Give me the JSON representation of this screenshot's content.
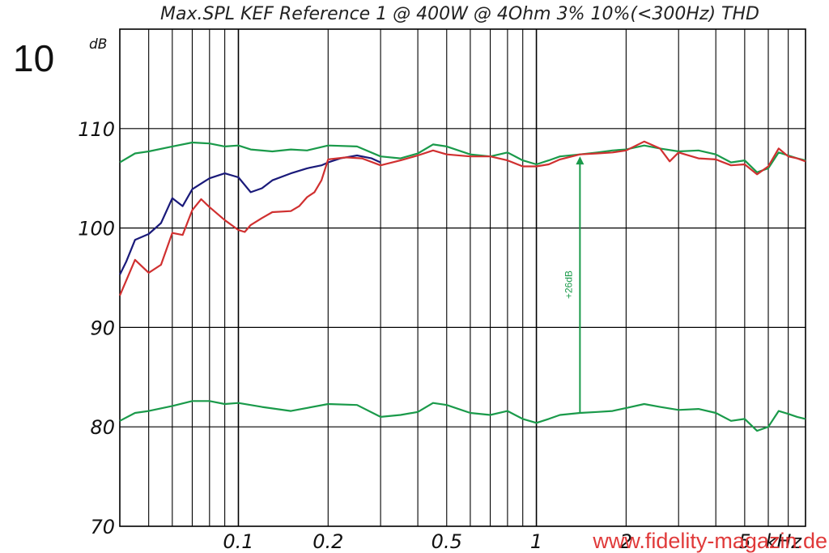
{
  "header": {
    "title": "Max.SPL KEF Reference 1 @ 400W @ 4Ohm 3% 10%(<300Hz) THD",
    "scale_value": "10",
    "scale_unit": "dB"
  },
  "watermark": "www.fidelity-magazin.de",
  "chart_data": {
    "type": "line",
    "title": "Max.SPL KEF Reference 1 @ 400W @ 4Ohm 3% 10%(<300Hz) THD",
    "xlabel": "kHz",
    "ylabel": "dB",
    "xscale": "log",
    "xlim": [
      0.04,
      8
    ],
    "ylim": [
      70,
      120
    ],
    "grid": true,
    "y_ticks": [
      "70",
      "80",
      "90",
      "100",
      "110"
    ],
    "x_ticks": [
      {
        "value": 0.1,
        "label": "0.1"
      },
      {
        "value": 0.2,
        "label": "0.2"
      },
      {
        "value": 0.5,
        "label": "0.5"
      },
      {
        "value": 1,
        "label": "1"
      },
      {
        "value": 2,
        "label": "2"
      },
      {
        "value": 5,
        "label": "5"
      }
    ],
    "x_unit_label": "kHz",
    "colors": {
      "green": "#1a9a4a",
      "blue": "#1a1a7a",
      "red": "#d03030"
    },
    "series": [
      {
        "color": "#1a9a4a",
        "points": [
          [
            0.04,
            106.6
          ],
          [
            0.045,
            107.5
          ],
          [
            0.05,
            107.7
          ],
          [
            0.06,
            108.2
          ],
          [
            0.07,
            108.6
          ],
          [
            0.08,
            108.5
          ],
          [
            0.09,
            108.2
          ],
          [
            0.1,
            108.3
          ],
          [
            0.11,
            107.9
          ],
          [
            0.13,
            107.7
          ],
          [
            0.15,
            107.9
          ],
          [
            0.17,
            107.8
          ],
          [
            0.2,
            108.3
          ],
          [
            0.25,
            108.2
          ],
          [
            0.3,
            107.2
          ],
          [
            0.35,
            107.0
          ],
          [
            0.4,
            107.5
          ],
          [
            0.45,
            108.4
          ],
          [
            0.5,
            108.2
          ],
          [
            0.6,
            107.4
          ],
          [
            0.7,
            107.2
          ],
          [
            0.8,
            107.6
          ],
          [
            0.9,
            106.8
          ],
          [
            1.0,
            106.4
          ],
          [
            1.1,
            106.8
          ],
          [
            1.2,
            107.2
          ],
          [
            1.4,
            107.4
          ],
          [
            1.6,
            107.6
          ],
          [
            1.8,
            107.8
          ],
          [
            2.0,
            107.9
          ],
          [
            2.3,
            108.3
          ],
          [
            2.6,
            108.0
          ],
          [
            3.0,
            107.7
          ],
          [
            3.5,
            107.8
          ],
          [
            4.0,
            107.4
          ],
          [
            4.5,
            106.6
          ],
          [
            5.0,
            106.8
          ],
          [
            5.5,
            105.6
          ],
          [
            6.0,
            106.0
          ],
          [
            6.5,
            107.6
          ],
          [
            7.0,
            107.3
          ],
          [
            7.5,
            107.0
          ],
          [
            8.0,
            106.8
          ]
        ]
      },
      {
        "color": "#1a1a7a",
        "points": [
          [
            0.04,
            95.3
          ],
          [
            0.042,
            96.6
          ],
          [
            0.045,
            98.8
          ],
          [
            0.05,
            99.4
          ],
          [
            0.055,
            100.5
          ],
          [
            0.06,
            103.0
          ],
          [
            0.065,
            102.2
          ],
          [
            0.07,
            103.9
          ],
          [
            0.08,
            105.0
          ],
          [
            0.09,
            105.5
          ],
          [
            0.1,
            105.1
          ],
          [
            0.11,
            103.6
          ],
          [
            0.12,
            104.0
          ],
          [
            0.13,
            104.8
          ],
          [
            0.15,
            105.5
          ],
          [
            0.17,
            106.0
          ],
          [
            0.19,
            106.3
          ],
          [
            0.2,
            106.6
          ],
          [
            0.22,
            107.0
          ],
          [
            0.25,
            107.3
          ],
          [
            0.28,
            107.0
          ],
          [
            0.3,
            106.6
          ]
        ]
      },
      {
        "color": "#d03030",
        "points": [
          [
            0.04,
            93.2
          ],
          [
            0.045,
            96.8
          ],
          [
            0.05,
            95.5
          ],
          [
            0.055,
            96.3
          ],
          [
            0.06,
            99.5
          ],
          [
            0.065,
            99.3
          ],
          [
            0.07,
            101.8
          ],
          [
            0.075,
            102.9
          ],
          [
            0.08,
            102.1
          ],
          [
            0.09,
            100.8
          ],
          [
            0.1,
            99.8
          ],
          [
            0.105,
            99.6
          ],
          [
            0.11,
            100.3
          ],
          [
            0.12,
            101.0
          ],
          [
            0.13,
            101.6
          ],
          [
            0.15,
            101.7
          ],
          [
            0.16,
            102.2
          ],
          [
            0.17,
            103.1
          ],
          [
            0.18,
            103.6
          ],
          [
            0.19,
            104.8
          ],
          [
            0.2,
            106.9
          ],
          [
            0.23,
            107.1
          ],
          [
            0.26,
            107.0
          ],
          [
            0.3,
            106.3
          ],
          [
            0.35,
            106.8
          ],
          [
            0.4,
            107.3
          ],
          [
            0.45,
            107.8
          ],
          [
            0.5,
            107.4
          ],
          [
            0.6,
            107.2
          ],
          [
            0.7,
            107.2
          ],
          [
            0.8,
            106.8
          ],
          [
            0.9,
            106.2
          ],
          [
            1.0,
            106.2
          ],
          [
            1.1,
            106.4
          ],
          [
            1.2,
            106.9
          ],
          [
            1.4,
            107.4
          ],
          [
            1.6,
            107.5
          ],
          [
            1.8,
            107.6
          ],
          [
            2.0,
            107.8
          ],
          [
            2.3,
            108.7
          ],
          [
            2.6,
            108.0
          ],
          [
            2.8,
            106.7
          ],
          [
            3.0,
            107.6
          ],
          [
            3.5,
            107.0
          ],
          [
            4.0,
            106.9
          ],
          [
            4.5,
            106.3
          ],
          [
            5.0,
            106.4
          ],
          [
            5.5,
            105.4
          ],
          [
            6.0,
            106.2
          ],
          [
            6.5,
            108.0
          ],
          [
            7.0,
            107.2
          ],
          [
            7.5,
            107.0
          ],
          [
            8.0,
            106.7
          ]
        ]
      },
      {
        "color": "#1a9a4a",
        "points": [
          [
            0.04,
            80.6
          ],
          [
            0.045,
            81.4
          ],
          [
            0.05,
            81.6
          ],
          [
            0.06,
            82.1
          ],
          [
            0.07,
            82.6
          ],
          [
            0.08,
            82.6
          ],
          [
            0.09,
            82.3
          ],
          [
            0.1,
            82.4
          ],
          [
            0.12,
            82.0
          ],
          [
            0.15,
            81.6
          ],
          [
            0.2,
            82.3
          ],
          [
            0.25,
            82.2
          ],
          [
            0.3,
            81.0
          ],
          [
            0.35,
            81.2
          ],
          [
            0.4,
            81.5
          ],
          [
            0.45,
            82.4
          ],
          [
            0.5,
            82.2
          ],
          [
            0.6,
            81.4
          ],
          [
            0.7,
            81.2
          ],
          [
            0.8,
            81.6
          ],
          [
            0.9,
            80.8
          ],
          [
            1.0,
            80.4
          ],
          [
            1.1,
            80.8
          ],
          [
            1.2,
            81.2
          ],
          [
            1.4,
            81.4
          ],
          [
            1.6,
            81.5
          ],
          [
            1.8,
            81.6
          ],
          [
            2.0,
            81.9
          ],
          [
            2.3,
            82.3
          ],
          [
            2.6,
            82.0
          ],
          [
            3.0,
            81.7
          ],
          [
            3.5,
            81.8
          ],
          [
            4.0,
            81.4
          ],
          [
            4.5,
            80.6
          ],
          [
            5.0,
            80.8
          ],
          [
            5.5,
            79.6
          ],
          [
            6.0,
            80.0
          ],
          [
            6.5,
            81.6
          ],
          [
            7.0,
            81.3
          ],
          [
            7.5,
            81.0
          ],
          [
            8.0,
            80.8
          ]
        ]
      }
    ],
    "annotations": [
      {
        "text": "+26dB",
        "x": 1.4,
        "y_from": 81.4,
        "y_to": 107.2,
        "color": "#1a9a4a"
      }
    ]
  }
}
